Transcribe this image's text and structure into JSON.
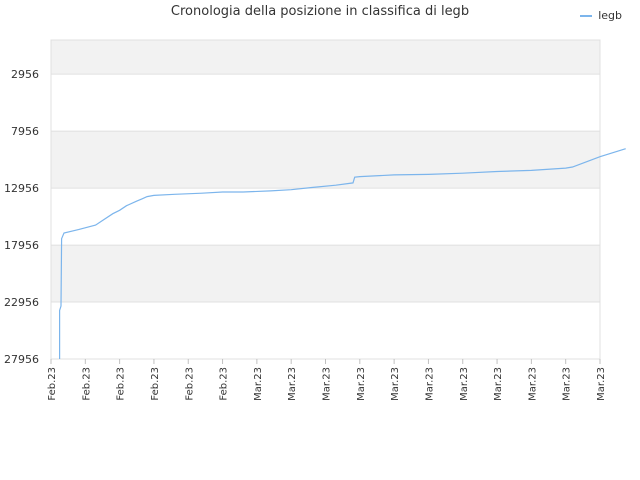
{
  "chart_data": {
    "type": "line",
    "title": "Cronologia della posizione in classifica di legb",
    "xlabel": "",
    "ylabel": "",
    "y_axis_reversed": true,
    "ylim": [
      27956,
      -44
    ],
    "y_ticks": [
      2956,
      7956,
      12956,
      17956,
      22956,
      27956
    ],
    "x_tick_labels": [
      "Feb.23",
      "Feb.23",
      "Feb.23",
      "Feb.23",
      "Feb.23",
      "Feb.23",
      "Mar.23",
      "Mar.23",
      "Mar.23",
      "Mar.23",
      "Mar.23",
      "Mar.23",
      "Mar.23",
      "Mar.23",
      "Mar.23",
      "Mar.23",
      "Mar.23"
    ],
    "grid": true,
    "legend_position": "top-right",
    "colors": {
      "series": "#7cb5ec",
      "band": "#f2f2f2",
      "grid": "#e0e0e0"
    },
    "series": [
      {
        "name": "legb",
        "points": [
          [
            0.25,
            27956
          ],
          [
            0.25,
            23700
          ],
          [
            0.29,
            23300
          ],
          [
            0.31,
            17400
          ],
          [
            0.38,
            16900
          ],
          [
            0.8,
            16600
          ],
          [
            1.3,
            16200
          ],
          [
            1.5,
            15800
          ],
          [
            1.8,
            15200
          ],
          [
            2.0,
            14900
          ],
          [
            2.2,
            14500
          ],
          [
            2.5,
            14100
          ],
          [
            2.65,
            13900
          ],
          [
            2.8,
            13700
          ],
          [
            3.0,
            13600
          ],
          [
            3.6,
            13500
          ],
          [
            4.4,
            13400
          ],
          [
            5.0,
            13300
          ],
          [
            5.6,
            13300
          ],
          [
            6.4,
            13200
          ],
          [
            7.0,
            13100
          ],
          [
            7.6,
            12900
          ],
          [
            8.3,
            12700
          ],
          [
            8.8,
            12500
          ],
          [
            8.85,
            12000
          ],
          [
            9.0,
            11950
          ],
          [
            10.0,
            11800
          ],
          [
            11.0,
            11750
          ],
          [
            12.0,
            11650
          ],
          [
            13.0,
            11500
          ],
          [
            14.0,
            11400
          ],
          [
            15.0,
            11200
          ],
          [
            15.2,
            11100
          ],
          [
            16.0,
            10200
          ],
          [
            16.75,
            9500
          ]
        ]
      }
    ]
  }
}
